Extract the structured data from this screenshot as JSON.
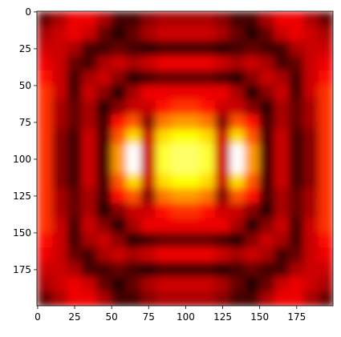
{
  "chart_data": {
    "type": "heatmap",
    "colormap": "hot",
    "x": [
      5,
      15,
      25,
      35,
      45,
      55,
      65,
      75,
      85,
      95,
      105,
      115,
      125,
      135,
      145,
      155,
      165,
      175,
      185,
      195
    ],
    "y": [
      5,
      15,
      25,
      35,
      45,
      55,
      65,
      75,
      85,
      95,
      105,
      115,
      125,
      135,
      145,
      155,
      165,
      175,
      185,
      195
    ],
    "values": [
      [
        0.15,
        0.25,
        0.35,
        0.35,
        0.25,
        0.1,
        0.1,
        0.2,
        0.25,
        0.25,
        0.25,
        0.25,
        0.2,
        0.1,
        0.1,
        0.25,
        0.35,
        0.35,
        0.25,
        0.15
      ],
      [
        0.25,
        0.3,
        0.35,
        0.3,
        0.15,
        0.05,
        0.15,
        0.25,
        0.3,
        0.3,
        0.3,
        0.3,
        0.25,
        0.15,
        0.05,
        0.15,
        0.3,
        0.35,
        0.3,
        0.25
      ],
      [
        0.3,
        0.3,
        0.25,
        0.1,
        0.1,
        0.15,
        0.1,
        0.05,
        0.1,
        0.1,
        0.1,
        0.1,
        0.05,
        0.1,
        0.15,
        0.1,
        0.1,
        0.25,
        0.3,
        0.3
      ],
      [
        0.35,
        0.3,
        0.15,
        0.1,
        0.25,
        0.3,
        0.25,
        0.3,
        0.35,
        0.35,
        0.35,
        0.35,
        0.3,
        0.25,
        0.3,
        0.25,
        0.1,
        0.15,
        0.3,
        0.35
      ],
      [
        0.4,
        0.3,
        0.1,
        0.25,
        0.3,
        0.2,
        0.05,
        0.1,
        0.15,
        0.15,
        0.15,
        0.15,
        0.1,
        0.05,
        0.2,
        0.3,
        0.25,
        0.1,
        0.3,
        0.4
      ],
      [
        0.45,
        0.3,
        0.1,
        0.3,
        0.2,
        0.05,
        0.25,
        0.35,
        0.35,
        0.35,
        0.35,
        0.35,
        0.35,
        0.25,
        0.05,
        0.2,
        0.3,
        0.1,
        0.3,
        0.45
      ],
      [
        0.45,
        0.25,
        0.15,
        0.25,
        0.05,
        0.2,
        0.3,
        0.3,
        0.4,
        0.45,
        0.45,
        0.4,
        0.3,
        0.3,
        0.2,
        0.05,
        0.25,
        0.15,
        0.25,
        0.45
      ],
      [
        0.45,
        0.25,
        0.15,
        0.25,
        0.1,
        0.4,
        0.5,
        0.2,
        0.55,
        0.6,
        0.6,
        0.55,
        0.2,
        0.5,
        0.4,
        0.1,
        0.25,
        0.15,
        0.25,
        0.45
      ],
      [
        0.45,
        0.2,
        0.1,
        0.3,
        0.1,
        0.5,
        0.7,
        0.3,
        0.7,
        0.75,
        0.75,
        0.7,
        0.3,
        0.7,
        0.5,
        0.1,
        0.3,
        0.1,
        0.2,
        0.45
      ],
      [
        0.45,
        0.2,
        0.1,
        0.3,
        0.1,
        0.6,
        1.0,
        0.3,
        0.8,
        0.85,
        0.85,
        0.8,
        0.3,
        1.0,
        0.6,
        0.1,
        0.3,
        0.1,
        0.2,
        0.45
      ],
      [
        0.45,
        0.2,
        0.1,
        0.3,
        0.1,
        0.6,
        1.0,
        0.3,
        0.8,
        0.85,
        0.85,
        0.8,
        0.3,
        1.0,
        0.6,
        0.1,
        0.3,
        0.1,
        0.2,
        0.45
      ],
      [
        0.45,
        0.2,
        0.1,
        0.3,
        0.1,
        0.5,
        0.7,
        0.3,
        0.7,
        0.75,
        0.75,
        0.7,
        0.3,
        0.7,
        0.5,
        0.1,
        0.3,
        0.1,
        0.2,
        0.45
      ],
      [
        0.45,
        0.25,
        0.15,
        0.25,
        0.1,
        0.4,
        0.5,
        0.2,
        0.55,
        0.6,
        0.6,
        0.55,
        0.2,
        0.5,
        0.4,
        0.1,
        0.25,
        0.15,
        0.25,
        0.45
      ],
      [
        0.45,
        0.25,
        0.15,
        0.25,
        0.05,
        0.2,
        0.3,
        0.3,
        0.4,
        0.45,
        0.45,
        0.4,
        0.3,
        0.3,
        0.2,
        0.05,
        0.25,
        0.15,
        0.25,
        0.45
      ],
      [
        0.45,
        0.3,
        0.1,
        0.3,
        0.2,
        0.05,
        0.25,
        0.35,
        0.35,
        0.35,
        0.35,
        0.35,
        0.35,
        0.25,
        0.05,
        0.2,
        0.3,
        0.1,
        0.3,
        0.45
      ],
      [
        0.4,
        0.3,
        0.1,
        0.25,
        0.3,
        0.2,
        0.05,
        0.1,
        0.15,
        0.15,
        0.15,
        0.15,
        0.1,
        0.05,
        0.2,
        0.3,
        0.25,
        0.1,
        0.3,
        0.4
      ],
      [
        0.35,
        0.3,
        0.15,
        0.1,
        0.25,
        0.3,
        0.25,
        0.3,
        0.35,
        0.35,
        0.35,
        0.35,
        0.3,
        0.25,
        0.3,
        0.25,
        0.1,
        0.15,
        0.3,
        0.35
      ],
      [
        0.3,
        0.3,
        0.25,
        0.1,
        0.1,
        0.15,
        0.1,
        0.05,
        0.1,
        0.1,
        0.1,
        0.1,
        0.05,
        0.1,
        0.15,
        0.1,
        0.1,
        0.25,
        0.3,
        0.3
      ],
      [
        0.25,
        0.3,
        0.35,
        0.3,
        0.15,
        0.05,
        0.15,
        0.25,
        0.3,
        0.3,
        0.3,
        0.3,
        0.25,
        0.15,
        0.05,
        0.15,
        0.3,
        0.35,
        0.3,
        0.25
      ],
      [
        0.15,
        0.25,
        0.35,
        0.35,
        0.25,
        0.1,
        0.1,
        0.2,
        0.25,
        0.25,
        0.25,
        0.25,
        0.2,
        0.1,
        0.1,
        0.25,
        0.35,
        0.35,
        0.25,
        0.15
      ]
    ],
    "xlim": [
      -0.5,
      199.5
    ],
    "ylim": [
      199.5,
      -0.5
    ],
    "xticks": [
      0,
      25,
      50,
      75,
      100,
      125,
      150,
      175
    ],
    "yticks": [
      0,
      25,
      50,
      75,
      100,
      125,
      150,
      175
    ]
  }
}
